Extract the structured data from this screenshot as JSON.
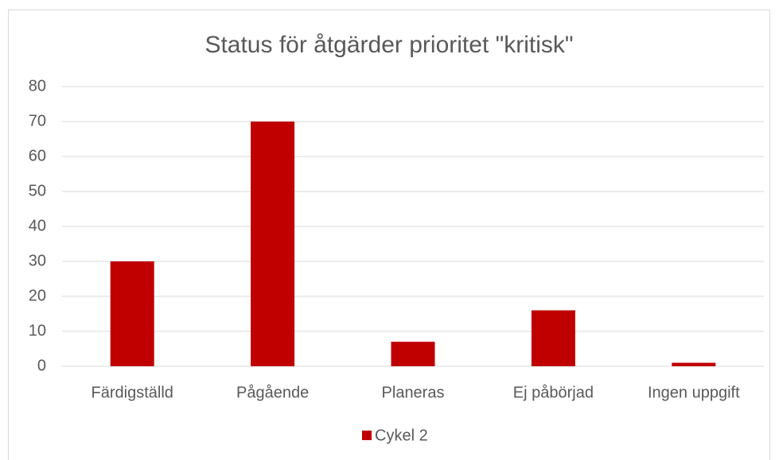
{
  "chart_data": {
    "type": "bar",
    "title": "Status för åtgärder prioritet \"kritisk\"",
    "categories": [
      "Färdigställd",
      "Pågående",
      "Planeras",
      "Ej påbörjad",
      "Ingen uppgift"
    ],
    "series": [
      {
        "name": "Cykel 2",
        "color": "#c00000",
        "values": [
          30,
          70,
          7,
          16,
          1
        ]
      }
    ],
    "ylim": [
      0,
      80
    ],
    "yticks": [
      0,
      10,
      20,
      30,
      40,
      50,
      60,
      70,
      80
    ],
    "grid": true,
    "legend": "bottom"
  }
}
